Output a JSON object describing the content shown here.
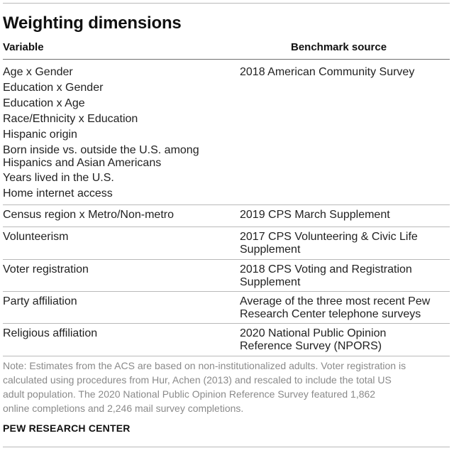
{
  "title": "Weighting dimensions",
  "headers": {
    "variable": "Variable",
    "benchmark": "Benchmark source"
  },
  "rows": [
    {
      "variables": [
        "Age x Gender",
        "Education x Gender",
        "Education x Age",
        "Race/Ethnicity x Education",
        "Hispanic origin",
        "Born inside vs. outside the U.S. among",
        "Hispanics and Asian Americans",
        "Years lived in the U.S.",
        "Home internet access"
      ],
      "source": [
        "2018 American Community Survey"
      ]
    },
    {
      "variables": [
        "Census region x Metro/Non-metro"
      ],
      "source": [
        "2019 CPS March Supplement"
      ]
    },
    {
      "variables": [
        "Volunteerism"
      ],
      "source": [
        "2017 CPS Volunteering & Civic Life",
        "Supplement"
      ]
    },
    {
      "variables": [
        "Voter registration"
      ],
      "source": [
        "2018 CPS Voting and Registration",
        "Supplement"
      ]
    },
    {
      "variables": [
        "Party affiliation"
      ],
      "source": [
        "Average of the three most recent Pew",
        "Research Center telephone surveys"
      ]
    },
    {
      "variables": [
        "Religious affiliation"
      ],
      "source": [
        "2020 National Public Opinion",
        "Reference Survey (NPORS)"
      ]
    }
  ],
  "note": [
    "Note: Estimates from the ACS are based on non-institutionalized adults. Voter registration is",
    "calculated using procedures from Hur, Achen (2013) and rescaled to include the total US",
    "adult population. The 2020 National Public Opinion Reference Survey featured 1,862",
    "online completions and 2,246 mail survey completions."
  ],
  "source_credit": "PEW RESEARCH CENTER"
}
